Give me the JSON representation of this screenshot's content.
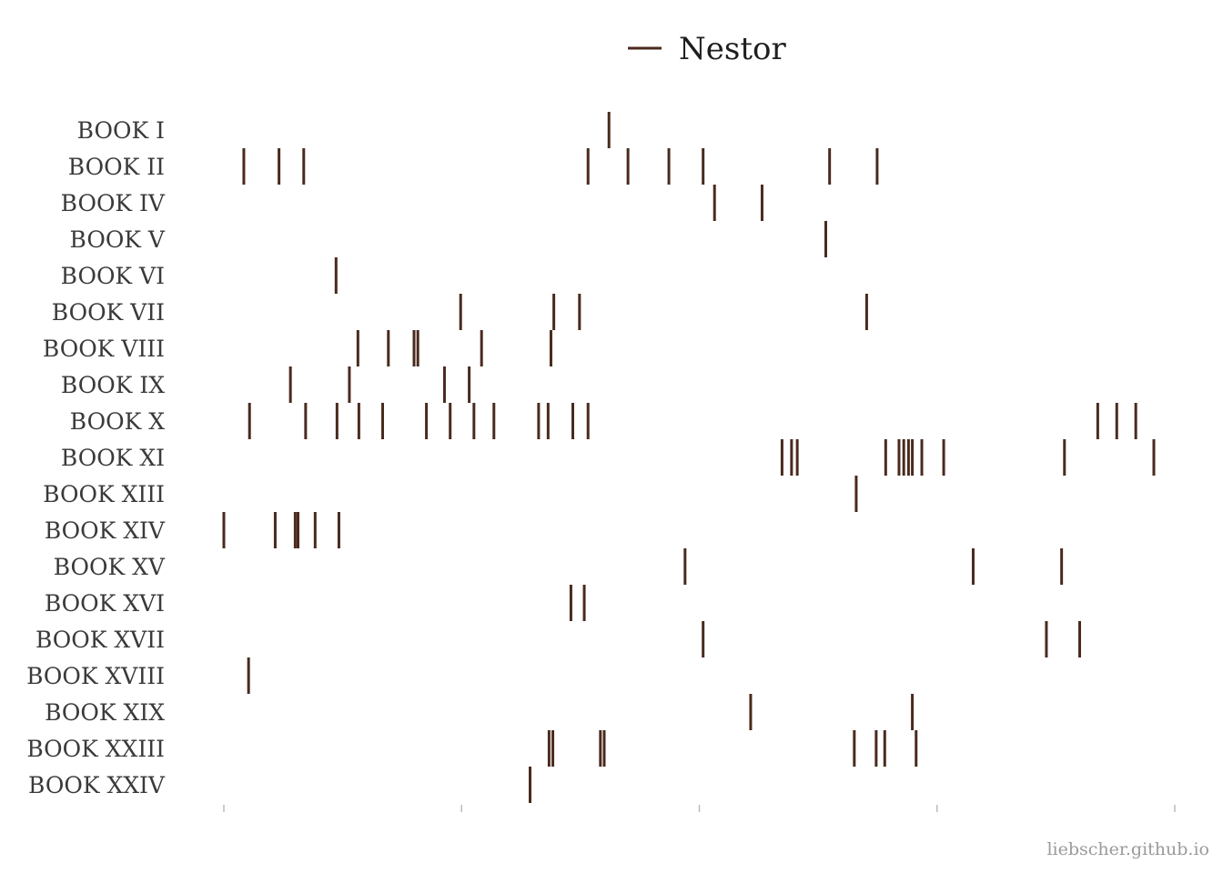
{
  "chart_data": {
    "type": "scatter",
    "marker": "vertical-line",
    "xlim": [
      0,
      100
    ],
    "grid": false,
    "legend_position": "top-center",
    "colors": {
      "marks": "#4a2a1e",
      "axis": "#bbbbbb",
      "labels": "#3a3a3a",
      "credit": "#9a9a9a"
    },
    "series": [
      {
        "name": "Nestor"
      }
    ],
    "categories": [
      "BOOK I",
      "BOOK II",
      "BOOK IV",
      "BOOK V",
      "BOOK VI",
      "BOOK VII",
      "BOOK VIII",
      "BOOK IX",
      "BOOK X",
      "BOOK XI",
      "BOOK XIII",
      "BOOK XIV",
      "BOOK XV",
      "BOOK XVI",
      "BOOK XVII",
      "BOOK XVIII",
      "BOOK XIX",
      "BOOK XXIII",
      "BOOK XXIV"
    ],
    "rows": [
      {
        "label": "BOOK I",
        "x": [
          40.5
        ]
      },
      {
        "label": "BOOK II",
        "x": [
          2.1,
          5.8,
          8.4,
          38.3,
          42.5,
          46.8,
          50.4,
          63.7,
          68.7
        ]
      },
      {
        "label": "BOOK IV",
        "x": [
          51.6,
          56.6
        ]
      },
      {
        "label": "BOOK V",
        "x": [
          63.3
        ]
      },
      {
        "label": "BOOK VI",
        "x": [
          11.8
        ]
      },
      {
        "label": "BOOK VII",
        "x": [
          24.9,
          34.7,
          37.4,
          67.6
        ]
      },
      {
        "label": "BOOK VIII",
        "x": [
          14.1,
          17.3,
          20.0,
          20.4,
          27.1,
          34.4
        ]
      },
      {
        "label": "BOOK IX",
        "x": [
          7.0,
          13.2,
          23.2,
          25.8
        ]
      },
      {
        "label": "BOOK X",
        "x": [
          2.7,
          8.6,
          11.9,
          14.2,
          16.7,
          21.3,
          23.8,
          26.3,
          28.4,
          33.1,
          34.1,
          36.7,
          38.3,
          91.9,
          93.9,
          95.9
        ]
      },
      {
        "label": "BOOK XI",
        "x": [
          58.7,
          59.7,
          60.3,
          69.6,
          71.0,
          71.5,
          72.0,
          72.4,
          73.4,
          75.7,
          88.4,
          97.8
        ]
      },
      {
        "label": "BOOK XIII",
        "x": [
          66.5
        ]
      },
      {
        "label": "BOOK XIV",
        "x": [
          0.0,
          5.4,
          7.5,
          7.8,
          9.6,
          12.1
        ]
      },
      {
        "label": "BOOK XV",
        "x": [
          48.5,
          78.8,
          88.1
        ]
      },
      {
        "label": "BOOK XVI",
        "x": [
          36.5,
          37.9
        ]
      },
      {
        "label": "BOOK XVII",
        "x": [
          50.4,
          86.5,
          90.0
        ]
      },
      {
        "label": "BOOK XVIII",
        "x": [
          2.6
        ]
      },
      {
        "label": "BOOK XIX",
        "x": [
          55.4,
          72.4
        ]
      },
      {
        "label": "BOOK XXIII",
        "x": [
          34.2,
          34.6,
          39.6,
          40.0,
          66.3,
          68.6,
          69.5,
          72.8
        ]
      },
      {
        "label": "BOOK XXIV",
        "x": [
          32.2
        ]
      }
    ]
  },
  "credit": "liebscher.github.io"
}
